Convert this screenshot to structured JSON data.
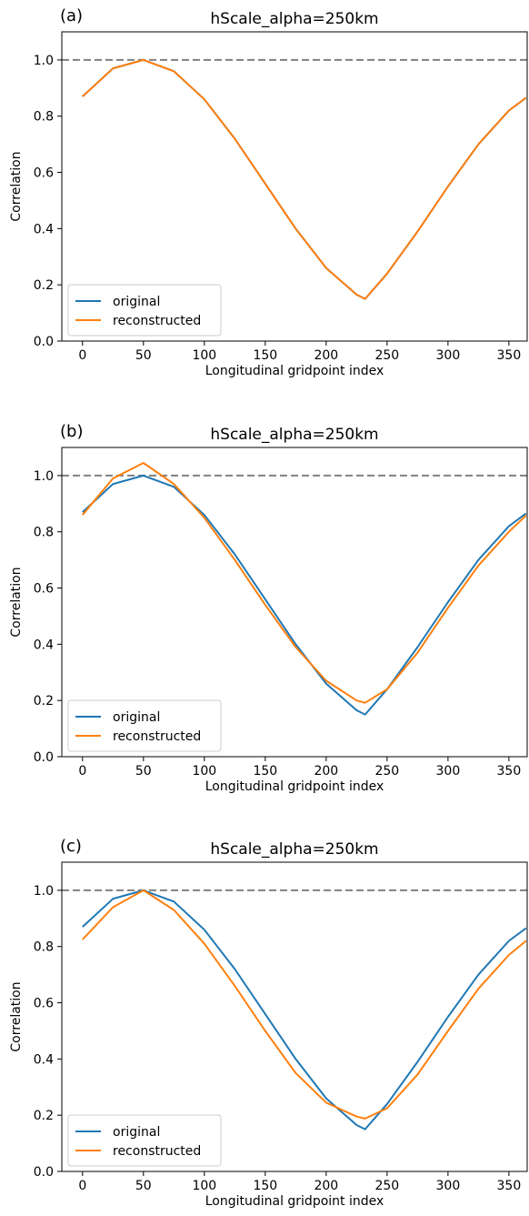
{
  "chart_data": [
    {
      "type": "line",
      "panel_label": "(a)",
      "title": "hScale_alpha=250km",
      "xlabel": "Longitudinal gridpoint index",
      "ylabel": "Correlation",
      "xlim": [
        -17,
        365
      ],
      "ylim": [
        0,
        1.1
      ],
      "xticks": [
        0,
        50,
        100,
        150,
        200,
        250,
        300,
        350
      ],
      "yticks": [
        0.0,
        0.2,
        0.4,
        0.6,
        0.8,
        1.0
      ],
      "reference_line": {
        "y": 1.0,
        "style": "dashed",
        "color": "#808080"
      },
      "legend": {
        "position": "lower-left",
        "entries": [
          "original",
          "reconstructed"
        ]
      },
      "series": [
        {
          "name": "original",
          "color": "#1f77b4",
          "x": [
            0,
            25,
            50,
            75,
            100,
            125,
            150,
            175,
            200,
            225,
            232,
            250,
            275,
            300,
            325,
            350,
            364
          ],
          "y": [
            0.87,
            0.97,
            1.0,
            0.96,
            0.86,
            0.72,
            0.56,
            0.4,
            0.26,
            0.165,
            0.15,
            0.24,
            0.39,
            0.55,
            0.7,
            0.82,
            0.865
          ]
        },
        {
          "name": "reconstructed",
          "color": "#ff7f0e",
          "x": [
            0,
            25,
            50,
            75,
            100,
            125,
            150,
            175,
            200,
            225,
            232,
            250,
            275,
            300,
            325,
            350,
            364
          ],
          "y": [
            0.87,
            0.97,
            1.0,
            0.96,
            0.86,
            0.72,
            0.56,
            0.4,
            0.26,
            0.165,
            0.15,
            0.24,
            0.39,
            0.55,
            0.7,
            0.82,
            0.865
          ]
        }
      ]
    },
    {
      "type": "line",
      "panel_label": "(b)",
      "title": "hScale_alpha=250km",
      "xlabel": "Longitudinal gridpoint index",
      "ylabel": "Correlation",
      "xlim": [
        -17,
        365
      ],
      "ylim": [
        0,
        1.1
      ],
      "xticks": [
        0,
        50,
        100,
        150,
        200,
        250,
        300,
        350
      ],
      "yticks": [
        0.0,
        0.2,
        0.4,
        0.6,
        0.8,
        1.0
      ],
      "reference_line": {
        "y": 1.0,
        "style": "dashed",
        "color": "#808080"
      },
      "legend": {
        "position": "lower-left",
        "entries": [
          "original",
          "reconstructed"
        ]
      },
      "series": [
        {
          "name": "original",
          "color": "#1f77b4",
          "x": [
            0,
            25,
            50,
            75,
            100,
            125,
            150,
            175,
            200,
            225,
            232,
            250,
            275,
            300,
            325,
            350,
            364
          ],
          "y": [
            0.87,
            0.97,
            1.0,
            0.96,
            0.86,
            0.72,
            0.56,
            0.4,
            0.26,
            0.165,
            0.15,
            0.24,
            0.39,
            0.55,
            0.7,
            0.82,
            0.865
          ]
        },
        {
          "name": "reconstructed",
          "color": "#ff7f0e",
          "x": [
            0,
            25,
            50,
            75,
            100,
            125,
            150,
            175,
            200,
            225,
            232,
            250,
            275,
            300,
            325,
            350,
            364
          ],
          "y": [
            0.86,
            0.99,
            1.045,
            0.97,
            0.85,
            0.7,
            0.54,
            0.39,
            0.27,
            0.2,
            0.192,
            0.24,
            0.37,
            0.53,
            0.68,
            0.8,
            0.858
          ]
        }
      ]
    },
    {
      "type": "line",
      "panel_label": "(c)",
      "title": "hScale_alpha=250km",
      "xlabel": "Longitudinal gridpoint index",
      "ylabel": "Correlation",
      "xlim": [
        -17,
        365
      ],
      "ylim": [
        0,
        1.1
      ],
      "xticks": [
        0,
        50,
        100,
        150,
        200,
        250,
        300,
        350
      ],
      "yticks": [
        0.0,
        0.2,
        0.4,
        0.6,
        0.8,
        1.0
      ],
      "reference_line": {
        "y": 1.0,
        "style": "dashed",
        "color": "#808080"
      },
      "legend": {
        "position": "lower-left",
        "entries": [
          "original",
          "reconstructed"
        ]
      },
      "series": [
        {
          "name": "original",
          "color": "#1f77b4",
          "x": [
            0,
            25,
            50,
            75,
            100,
            125,
            150,
            175,
            200,
            225,
            232,
            250,
            275,
            300,
            325,
            350,
            364
          ],
          "y": [
            0.87,
            0.97,
            1.0,
            0.96,
            0.86,
            0.72,
            0.56,
            0.4,
            0.26,
            0.165,
            0.15,
            0.24,
            0.39,
            0.55,
            0.7,
            0.82,
            0.865
          ]
        },
        {
          "name": "reconstructed",
          "color": "#ff7f0e",
          "x": [
            0,
            25,
            50,
            75,
            100,
            125,
            150,
            175,
            200,
            225,
            232,
            250,
            275,
            300,
            325,
            350,
            364
          ],
          "y": [
            0.825,
            0.94,
            1.0,
            0.93,
            0.81,
            0.66,
            0.5,
            0.35,
            0.245,
            0.195,
            0.188,
            0.225,
            0.345,
            0.5,
            0.65,
            0.77,
            0.82
          ]
        }
      ]
    }
  ]
}
